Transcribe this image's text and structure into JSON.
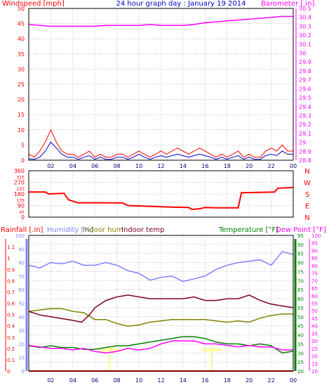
{
  "colors": {
    "wind_speed": "#ff0000",
    "wind_avg": "#0000c0",
    "barometer": "#ff00ff",
    "wind_dir": "#ff0000",
    "rainfall": "#ff0000",
    "humidity": "#8080ff",
    "indoor_hum": "#808000",
    "indoor_temp": "#800020",
    "temperature": "#008000",
    "dew_point": "#ff00ff",
    "sun_marker": "#ffff00",
    "grid": "#808080",
    "frame": "#000000"
  },
  "chart_data": [
    {
      "type": "line",
      "title": "24 hour graph day : January 19 2014",
      "x_tick_labels": [
        "02",
        "04",
        "06",
        "08",
        "10",
        "12",
        "14",
        "16",
        "18",
        "20",
        "22",
        "00"
      ],
      "left_axis": {
        "label": "Windspeed [mph]",
        "ylim": [
          0,
          50
        ],
        "tick_labels": [
          "0",
          "5",
          "10",
          "15",
          "20",
          "25",
          "30",
          "35",
          "40",
          "45",
          "50"
        ]
      },
      "right_axis": {
        "label": "Barometer [.in]",
        "ylim": [
          28.8,
          30.5
        ],
        "tick_labels": [
          "28.8",
          "28.9",
          "29",
          "29.1",
          "29.2",
          "29.3",
          "29.4",
          "29.5",
          "29.6",
          "29.7",
          "29.8",
          "29.9",
          "30",
          "30.1",
          "30.2",
          "30.3",
          "30.4",
          "30.5"
        ]
      },
      "grid": true,
      "series": [
        {
          "axis": "right",
          "x_hours": [
            0,
            1,
            2,
            3,
            4,
            5,
            6,
            7,
            8,
            9,
            10,
            11,
            12,
            13,
            14,
            15,
            16,
            17,
            18,
            19,
            20,
            21,
            22,
            23,
            24
          ],
          "values": [
            30.32,
            30.31,
            30.3,
            30.3,
            30.3,
            30.3,
            30.3,
            30.31,
            30.31,
            30.31,
            30.31,
            30.32,
            30.31,
            30.31,
            30.31,
            30.32,
            30.34,
            30.35,
            30.36,
            30.37,
            30.38,
            30.39,
            30.4,
            30.41,
            30.41
          ]
        },
        {
          "axis": "left",
          "x_hours": [
            0,
            0.5,
            1,
            1.5,
            2,
            2.5,
            3,
            3.5,
            4,
            4.5,
            5,
            5.5,
            6,
            6.5,
            7,
            7.5,
            8,
            8.5,
            9,
            9.5,
            10,
            10.5,
            11,
            11.5,
            12,
            12.5,
            13,
            13.5,
            14,
            14.5,
            15,
            15.5,
            16,
            16.5,
            17,
            17.5,
            18,
            18.5,
            19,
            19.5,
            20,
            20.5,
            21,
            21.5,
            22,
            22.5,
            23,
            23.5,
            24
          ],
          "values": [
            2,
            1,
            3,
            6,
            10,
            6,
            3,
            2,
            2,
            1,
            2,
            3,
            1,
            2,
            1,
            1,
            2,
            2,
            1,
            2,
            3,
            2,
            1,
            2,
            3,
            2,
            3,
            4,
            3,
            2,
            3,
            4,
            3,
            2,
            1,
            2,
            1,
            2,
            3,
            1,
            2,
            1,
            1,
            3,
            4,
            3,
            5,
            3,
            3
          ]
        },
        {
          "axis": "left",
          "x_hours": [
            0,
            0.5,
            1,
            1.5,
            2,
            2.5,
            3,
            3.5,
            4,
            4.5,
            5,
            5.5,
            6,
            6.5,
            7,
            7.5,
            8,
            8.5,
            9,
            9.5,
            10,
            10.5,
            11,
            11.5,
            12,
            12.5,
            13,
            13.5,
            14,
            14.5,
            15,
            15.5,
            16,
            16.5,
            17,
            17.5,
            18,
            18.5,
            19,
            19.5,
            20,
            20.5,
            21,
            21.5,
            22,
            22.5,
            23,
            23.5,
            24
          ],
          "values": [
            0.5,
            0.3,
            1,
            3,
            6,
            4,
            2,
            1,
            1,
            0.3,
            1,
            1.5,
            0.3,
            1,
            0.3,
            0.3,
            1,
            1,
            0.3,
            1,
            2,
            1,
            0.3,
            1,
            1.5,
            1,
            1.5,
            2,
            1.5,
            1,
            1.5,
            2,
            1.5,
            1,
            0.3,
            1,
            0.3,
            1,
            1.5,
            0.3,
            1,
            0.3,
            0.3,
            1.5,
            2,
            1.5,
            3,
            2,
            2
          ]
        }
      ]
    },
    {
      "type": "line",
      "x_tick_labels": [
        "02",
        "04",
        "06",
        "08",
        "10",
        "12",
        "14",
        "16",
        "18",
        "20",
        "22",
        "00"
      ],
      "left_axis": {
        "ylim": [
          0,
          360
        ],
        "tick_labels": [
          "0",
          "90",
          "180",
          "270",
          "360"
        ],
        "minor_tick_labels": [
          "45",
          "135",
          "225",
          "315"
        ]
      },
      "right_axis": {
        "tick_labels": [
          "N",
          "W",
          "S",
          "E",
          "N"
        ]
      },
      "grid": true,
      "series": [
        {
          "axis": "left",
          "x_hours": [
            0,
            1.5,
            1.8,
            3.2,
            3.6,
            4.5,
            5,
            8.5,
            9,
            13,
            14.5,
            14.8,
            15.5,
            16,
            17,
            19,
            19.3,
            22.3,
            22.6,
            24
          ],
          "values": [
            195,
            195,
            180,
            185,
            135,
            110,
            112,
            110,
            90,
            78,
            75,
            60,
            65,
            75,
            72,
            72,
            190,
            195,
            225,
            230
          ]
        }
      ]
    },
    {
      "type": "line",
      "x_tick_labels": [
        "02",
        "04",
        "06",
        "08",
        "10",
        "12",
        "14",
        "16",
        "18",
        "20",
        "22",
        "00"
      ],
      "axis_titles": [
        "Rainfall [.in]",
        "Humidity [%]",
        "Indoor hum",
        "Indoor temp",
        "Temperature [°F]",
        "Dew Point [°F]"
      ],
      "rainfall_axis": {
        "ylim": [
          0,
          1.2
        ],
        "tick_labels": [
          "0",
          "0.1",
          "0.2",
          "0.3",
          "0.4",
          "0.5",
          "0.6",
          "0.7",
          "0.8",
          "0.9",
          "1",
          "1.1"
        ]
      },
      "humidity_axis": {
        "ylim": [
          0,
          100
        ],
        "tick_labels": [
          "0",
          "10",
          "20",
          "30",
          "40",
          "50",
          "60",
          "70",
          "80",
          "90",
          "100"
        ]
      },
      "temperature_axis": {
        "ylim": [
          20,
          95
        ],
        "tick_labels": [
          "20",
          "25",
          "30",
          "35",
          "40",
          "45",
          "50",
          "55",
          "60",
          "65",
          "70",
          "75",
          "80",
          "85",
          "90",
          "95"
        ]
      },
      "dewpoint_axis": {
        "ylim": [
          10,
          100
        ],
        "tick_labels": [
          "10",
          "15",
          "20",
          "25",
          "30",
          "35",
          "40",
          "45",
          "50",
          "55",
          "60",
          "65",
          "70",
          "75",
          "80",
          "85",
          "90",
          "95",
          "100"
        ]
      },
      "grid": true,
      "sun_markers": [
        {
          "label": "Sun Rise",
          "x_hour": 7.3
        },
        {
          "label": "Sun Set",
          "x_hour": 16.6
        }
      ],
      "series": [
        {
          "axis": "rainfall",
          "x_hours": [
            0,
            24
          ],
          "values": [
            0,
            0
          ]
        },
        {
          "axis": "humidity",
          "x_hours": [
            0,
            1,
            2,
            3,
            4,
            5,
            6,
            7,
            8,
            9,
            10,
            11,
            12,
            13,
            14,
            15,
            16,
            17,
            18,
            19,
            20,
            21,
            22,
            23,
            24
          ],
          "values": [
            78,
            76,
            80,
            79,
            81,
            78,
            78,
            80,
            78,
            74,
            72,
            67,
            69,
            70,
            66,
            68,
            70,
            75,
            78,
            80,
            81,
            82,
            78,
            88,
            86
          ]
        },
        {
          "axis": "humidity",
          "x_hours": [
            0,
            1,
            2,
            3,
            4,
            5,
            6,
            7,
            8,
            9,
            10,
            11,
            12,
            13,
            14,
            15,
            16,
            17,
            18,
            19,
            20,
            21,
            22,
            23,
            24
          ],
          "values": [
            44,
            45,
            46,
            46,
            44,
            43,
            38,
            38,
            35,
            33,
            34,
            36,
            37,
            38,
            38,
            38,
            38,
            37,
            36,
            37,
            36,
            39,
            41,
            42,
            42
          ]
        },
        {
          "axis": "temperature",
          "x_hours": [
            0,
            1,
            2,
            3,
            4,
            4.8,
            5.5,
            6,
            7,
            8,
            9,
            10,
            11,
            12,
            13,
            14,
            15,
            16,
            17,
            18,
            19,
            20,
            21,
            22,
            23,
            24
          ],
          "values": [
            53,
            51,
            50,
            49,
            48,
            47,
            51,
            55,
            59,
            61,
            62,
            61,
            60,
            60,
            60,
            60,
            61,
            59,
            59,
            60,
            60,
            62,
            59,
            57,
            56,
            55
          ]
        },
        {
          "axis": "temperature",
          "x_hours": [
            0,
            1,
            2,
            3,
            4,
            5,
            6,
            7,
            8,
            9,
            10,
            11,
            12,
            13,
            14,
            15,
            16,
            17,
            18,
            19,
            20,
            21,
            22,
            23,
            24
          ],
          "values": [
            34,
            33,
            34,
            33,
            33,
            32,
            32,
            33,
            34,
            34,
            35,
            36,
            37,
            38,
            39,
            39,
            38,
            36,
            35,
            35,
            34,
            35,
            34,
            30,
            31
          ]
        },
        {
          "axis": "dewpoint",
          "x_hours": [
            0,
            1,
            2,
            3,
            4,
            5,
            6,
            7,
            8,
            9,
            10,
            11,
            12,
            13,
            14,
            15,
            16,
            17,
            18,
            19,
            20,
            21,
            22,
            23,
            24
          ],
          "values": [
            27,
            26,
            25,
            25,
            24,
            25,
            23,
            22,
            23,
            25,
            24,
            25,
            28,
            30,
            30,
            30,
            28,
            28,
            27,
            26,
            27,
            26,
            26,
            24,
            24
          ]
        }
      ]
    }
  ]
}
